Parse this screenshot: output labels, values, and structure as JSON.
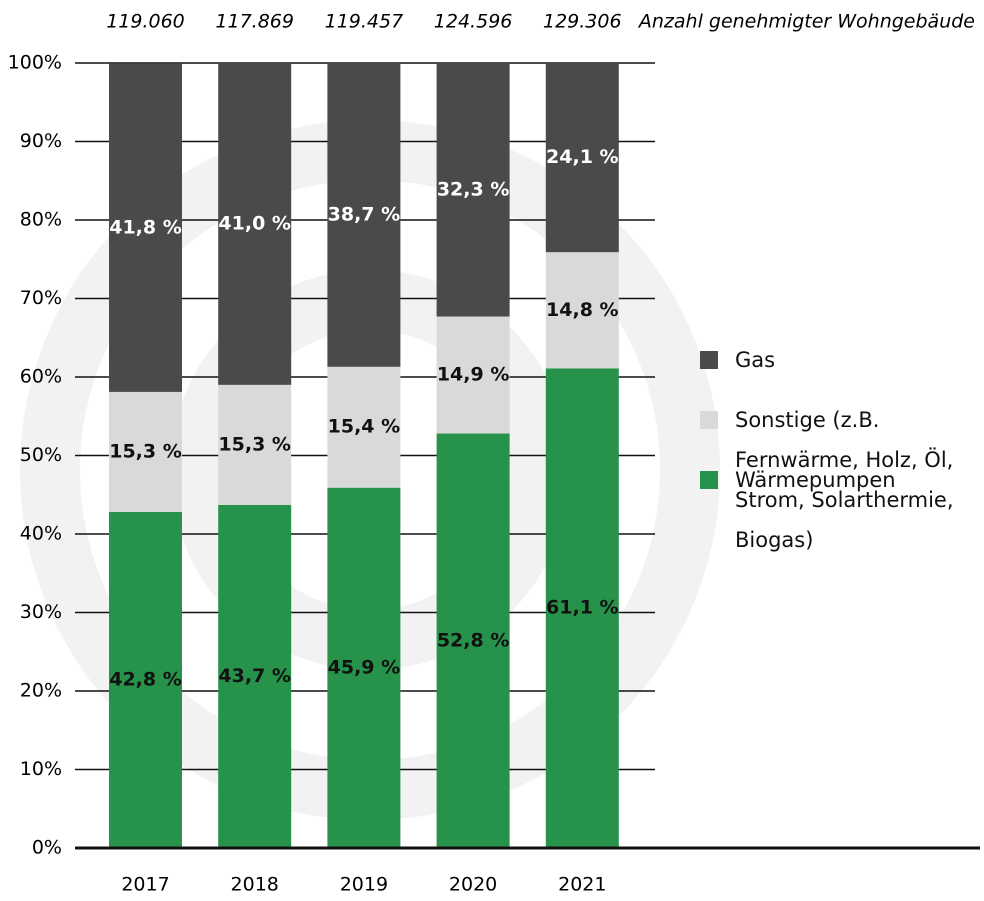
{
  "chart_data": {
    "type": "stacked_bar",
    "categories": [
      "2017",
      "2018",
      "2019",
      "2020",
      "2021"
    ],
    "building_counts_label": "Anzahl genehmigter Wohngebäude",
    "building_counts": [
      "119.060",
      "117.869",
      "119.457",
      "124.596",
      "129.306"
    ],
    "series": [
      {
        "name": "Wärmepumpen",
        "color": "#26924a",
        "label_color": "#111111",
        "values": [
          42.8,
          43.7,
          45.9,
          52.8,
          61.1
        ],
        "value_labels": [
          "42,8 %",
          "43,7 %",
          "45,9 %",
          "52,8 %",
          "61,1 %"
        ]
      },
      {
        "name": "Sonstige (z.B. Fernwärme, Holz, Öl, Strom, Solarthermie, Biogas)",
        "color": "#d9d9d9",
        "label_color": "#111111",
        "values": [
          15.3,
          15.3,
          15.4,
          14.9,
          14.8
        ],
        "value_labels": [
          "15,3 %",
          "15,3 %",
          "15,4 %",
          "14,9 %",
          "14,8 %"
        ]
      },
      {
        "name": "Gas",
        "color": "#4a4a4a",
        "label_color": "#ffffff",
        "values": [
          41.8,
          41.0,
          38.7,
          32.3,
          24.1
        ],
        "value_labels": [
          "41,8 %",
          "41,0 %",
          "38,7 %",
          "32,3 %",
          "24,1 %"
        ]
      }
    ],
    "ylim": [
      0,
      100
    ],
    "yticks": [
      {
        "value": 0,
        "label": "0%"
      },
      {
        "value": 10,
        "label": "10%"
      },
      {
        "value": 20,
        "label": "20%"
      },
      {
        "value": 30,
        "label": "30%"
      },
      {
        "value": 40,
        "label": "40%"
      },
      {
        "value": 50,
        "label": "50%"
      },
      {
        "value": 60,
        "label": "60%"
      },
      {
        "value": 70,
        "label": "70%"
      },
      {
        "value": 80,
        "label": "80%"
      },
      {
        "value": 90,
        "label": "90%"
      },
      {
        "value": 100,
        "label": "100%"
      }
    ],
    "grid": true,
    "legend": "right"
  }
}
